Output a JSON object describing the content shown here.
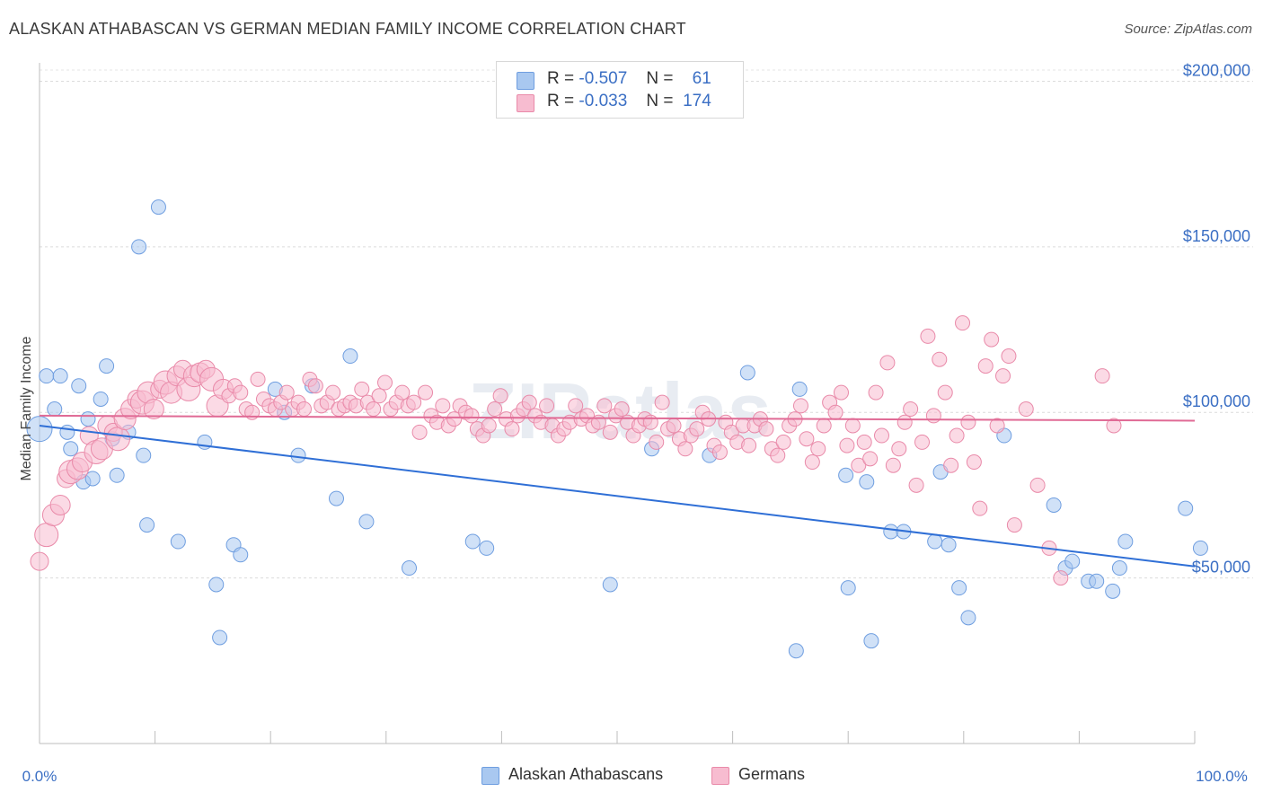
{
  "title": "ALASKAN ATHABASCAN VS GERMAN MEDIAN FAMILY INCOME CORRELATION CHART",
  "source": "Source: ZipAtlas.com",
  "watermark": "ZIPatlas",
  "legend": {
    "r_label": "R =",
    "n_label": "N =",
    "rows": [
      {
        "r": "-0.507",
        "n": "61",
        "color": "#a9c8f0",
        "border": "#6f9ee0"
      },
      {
        "r": "-0.033",
        "n": "174",
        "color": "#f7bcd0",
        "border": "#e98aa9"
      }
    ]
  },
  "bottom_legend": [
    "Alaskan Athabascans",
    "Germans"
  ],
  "chart_data": {
    "type": "scatter",
    "ylabel": "Median Family Income",
    "x_tick_labels": [
      "0.0%",
      "100.0%"
    ],
    "y_tick_labels": [
      "$50,000",
      "$100,000",
      "$150,000",
      "$200,000"
    ],
    "y_ticks": [
      50000,
      100000,
      150000,
      200000
    ],
    "xlim": [
      0,
      100
    ],
    "ylim": [
      0,
      205000
    ],
    "grid": true,
    "series": [
      {
        "name": "Alaskan Athabascans",
        "color": "#a9c8f0",
        "stroke": "#6f9ee0",
        "trend": {
          "x": [
            0,
            100
          ],
          "y": [
            96000,
            53500
          ],
          "color": "#2f6fd6"
        },
        "points": [
          [
            0,
            95000
          ],
          [
            0.6,
            111000
          ],
          [
            1.3,
            101000
          ],
          [
            1.8,
            111000
          ],
          [
            2.4,
            94000
          ],
          [
            2.7,
            89000
          ],
          [
            3.4,
            108000
          ],
          [
            3.8,
            79000
          ],
          [
            4.2,
            98000
          ],
          [
            4.6,
            80000
          ],
          [
            5.3,
            104000
          ],
          [
            5.8,
            114000
          ],
          [
            6.3,
            92000
          ],
          [
            6.7,
            81000
          ],
          [
            7.7,
            94000
          ],
          [
            8.6,
            150000
          ],
          [
            9.0,
            87000
          ],
          [
            9.3,
            66000
          ],
          [
            10.3,
            162000
          ],
          [
            12.0,
            61000
          ],
          [
            14.3,
            91000
          ],
          [
            15.3,
            48000
          ],
          [
            15.6,
            32000
          ],
          [
            16.8,
            60000
          ],
          [
            17.4,
            57000
          ],
          [
            20.4,
            107000
          ],
          [
            21.2,
            100000
          ],
          [
            22.4,
            87000
          ],
          [
            23.6,
            108000
          ],
          [
            25.7,
            74000
          ],
          [
            26.9,
            117000
          ],
          [
            28.3,
            67000
          ],
          [
            32.0,
            53000
          ],
          [
            37.5,
            61000
          ],
          [
            38.7,
            59000
          ],
          [
            49.4,
            48000
          ],
          [
            53.0,
            89000
          ],
          [
            58.0,
            87000
          ],
          [
            61.3,
            112000
          ],
          [
            65.5,
            28000
          ],
          [
            65.8,
            107000
          ],
          [
            70.0,
            47000
          ],
          [
            69.8,
            81000
          ],
          [
            71.6,
            79000
          ],
          [
            72.0,
            31000
          ],
          [
            73.7,
            64000
          ],
          [
            74.8,
            64000
          ],
          [
            77.5,
            61000
          ],
          [
            78.0,
            82000
          ],
          [
            78.7,
            60000
          ],
          [
            79.6,
            47000
          ],
          [
            80.4,
            38000
          ],
          [
            83.5,
            93000
          ],
          [
            87.8,
            72000
          ],
          [
            88.8,
            53000
          ],
          [
            89.4,
            55000
          ],
          [
            90.8,
            49000
          ],
          [
            91.5,
            49000
          ],
          [
            92.9,
            46000
          ],
          [
            93.5,
            53000
          ],
          [
            94.0,
            61000
          ],
          [
            99.2,
            71000
          ],
          [
            100.5,
            59000
          ]
        ]
      },
      {
        "name": "Germans",
        "color": "#f7bcd0",
        "stroke": "#e98aa9",
        "trend": {
          "x": [
            0,
            100
          ],
          "y": [
            99000,
            97500
          ],
          "color": "#e06a95"
        },
        "points": [
          [
            0,
            55000
          ],
          [
            0.6,
            63000
          ],
          [
            1.2,
            69000
          ],
          [
            1.8,
            72000
          ],
          [
            2.3,
            80000
          ],
          [
            2.7,
            82000
          ],
          [
            3.3,
            83000
          ],
          [
            3.7,
            85000
          ],
          [
            4.3,
            93000
          ],
          [
            4.9,
            88000
          ],
          [
            5.4,
            89000
          ],
          [
            5.9,
            96000
          ],
          [
            6.4,
            94000
          ],
          [
            6.8,
            92000
          ],
          [
            7.4,
            98000
          ],
          [
            7.9,
            101000
          ],
          [
            8.4,
            104000
          ],
          [
            8.9,
            103000
          ],
          [
            9.4,
            106000
          ],
          [
            9.9,
            101000
          ],
          [
            10.4,
            107000
          ],
          [
            10.9,
            109000
          ],
          [
            11.4,
            106000
          ],
          [
            11.9,
            111000
          ],
          [
            12.4,
            113000
          ],
          [
            12.9,
            107000
          ],
          [
            13.4,
            111000
          ],
          [
            13.9,
            112000
          ],
          [
            14.4,
            113000
          ],
          [
            14.9,
            110000
          ],
          [
            15.4,
            102000
          ],
          [
            15.9,
            107000
          ],
          [
            16.4,
            105000
          ],
          [
            16.9,
            108000
          ],
          [
            17.4,
            106000
          ],
          [
            17.9,
            101000
          ],
          [
            18.4,
            100000
          ],
          [
            18.9,
            110000
          ],
          [
            19.4,
            104000
          ],
          [
            19.9,
            102000
          ],
          [
            20.4,
            101000
          ],
          [
            20.9,
            103000
          ],
          [
            21.4,
            106000
          ],
          [
            21.9,
            101000
          ],
          [
            22.4,
            103000
          ],
          [
            22.9,
            101000
          ],
          [
            23.4,
            110000
          ],
          [
            23.9,
            108000
          ],
          [
            24.4,
            102000
          ],
          [
            24.9,
            103000
          ],
          [
            25.4,
            106000
          ],
          [
            25.9,
            101000
          ],
          [
            26.4,
            102000
          ],
          [
            26.9,
            103000
          ],
          [
            27.4,
            102000
          ],
          [
            27.9,
            107000
          ],
          [
            28.4,
            103000
          ],
          [
            28.9,
            101000
          ],
          [
            29.4,
            105000
          ],
          [
            29.9,
            109000
          ],
          [
            30.4,
            101000
          ],
          [
            30.9,
            103000
          ],
          [
            31.4,
            106000
          ],
          [
            31.9,
            102000
          ],
          [
            32.4,
            103000
          ],
          [
            32.9,
            94000
          ],
          [
            33.4,
            106000
          ],
          [
            33.9,
            99000
          ],
          [
            34.4,
            97000
          ],
          [
            34.9,
            102000
          ],
          [
            35.4,
            96000
          ],
          [
            35.9,
            98000
          ],
          [
            36.4,
            102000
          ],
          [
            36.9,
            100000
          ],
          [
            37.4,
            99000
          ],
          [
            37.9,
            95000
          ],
          [
            38.4,
            93000
          ],
          [
            38.9,
            96000
          ],
          [
            39.4,
            101000
          ],
          [
            39.9,
            105000
          ],
          [
            40.4,
            98000
          ],
          [
            40.9,
            95000
          ],
          [
            41.4,
            99000
          ],
          [
            41.9,
            101000
          ],
          [
            42.4,
            103000
          ],
          [
            42.9,
            99000
          ],
          [
            43.4,
            97000
          ],
          [
            43.9,
            102000
          ],
          [
            44.4,
            96000
          ],
          [
            44.9,
            93000
          ],
          [
            45.4,
            95000
          ],
          [
            45.9,
            97000
          ],
          [
            46.4,
            102000
          ],
          [
            46.9,
            98000
          ],
          [
            47.4,
            99000
          ],
          [
            47.9,
            96000
          ],
          [
            48.4,
            97000
          ],
          [
            48.9,
            102000
          ],
          [
            49.4,
            94000
          ],
          [
            49.9,
            99000
          ],
          [
            50.4,
            101000
          ],
          [
            50.9,
            97000
          ],
          [
            51.4,
            93000
          ],
          [
            51.9,
            96000
          ],
          [
            52.4,
            98000
          ],
          [
            52.9,
            97000
          ],
          [
            53.4,
            91000
          ],
          [
            53.9,
            103000
          ],
          [
            54.4,
            95000
          ],
          [
            54.9,
            96000
          ],
          [
            55.4,
            92000
          ],
          [
            55.9,
            89000
          ],
          [
            56.4,
            93000
          ],
          [
            56.9,
            95000
          ],
          [
            57.4,
            100000
          ],
          [
            57.9,
            98000
          ],
          [
            58.4,
            90000
          ],
          [
            58.9,
            88000
          ],
          [
            59.4,
            97000
          ],
          [
            59.9,
            94000
          ],
          [
            60.4,
            91000
          ],
          [
            60.9,
            96000
          ],
          [
            61.4,
            90000
          ],
          [
            61.9,
            96000
          ],
          [
            62.4,
            98000
          ],
          [
            62.9,
            95000
          ],
          [
            63.4,
            89000
          ],
          [
            63.9,
            87000
          ],
          [
            64.4,
            91000
          ],
          [
            64.9,
            96000
          ],
          [
            65.4,
            98000
          ],
          [
            65.9,
            102000
          ],
          [
            66.4,
            92000
          ],
          [
            66.9,
            85000
          ],
          [
            67.4,
            89000
          ],
          [
            67.9,
            96000
          ],
          [
            68.4,
            103000
          ],
          [
            68.9,
            100000
          ],
          [
            69.4,
            106000
          ],
          [
            69.9,
            90000
          ],
          [
            70.4,
            96000
          ],
          [
            70.9,
            84000
          ],
          [
            71.4,
            91000
          ],
          [
            71.9,
            86000
          ],
          [
            72.4,
            106000
          ],
          [
            72.9,
            93000
          ],
          [
            73.4,
            115000
          ],
          [
            73.9,
            84000
          ],
          [
            74.4,
            89000
          ],
          [
            74.9,
            97000
          ],
          [
            75.4,
            101000
          ],
          [
            75.9,
            78000
          ],
          [
            76.4,
            91000
          ],
          [
            76.9,
            123000
          ],
          [
            77.4,
            99000
          ],
          [
            77.9,
            116000
          ],
          [
            78.4,
            106000
          ],
          [
            78.9,
            84000
          ],
          [
            79.4,
            93000
          ],
          [
            79.9,
            127000
          ],
          [
            80.4,
            97000
          ],
          [
            80.9,
            85000
          ],
          [
            81.4,
            71000
          ],
          [
            81.9,
            114000
          ],
          [
            82.4,
            122000
          ],
          [
            82.9,
            96000
          ],
          [
            83.4,
            111000
          ],
          [
            83.9,
            117000
          ],
          [
            84.4,
            66000
          ],
          [
            85.4,
            101000
          ],
          [
            86.4,
            78000
          ],
          [
            87.4,
            59000
          ],
          [
            88.4,
            50000
          ],
          [
            92.0,
            111000
          ],
          [
            93.0,
            96000
          ]
        ]
      }
    ]
  }
}
